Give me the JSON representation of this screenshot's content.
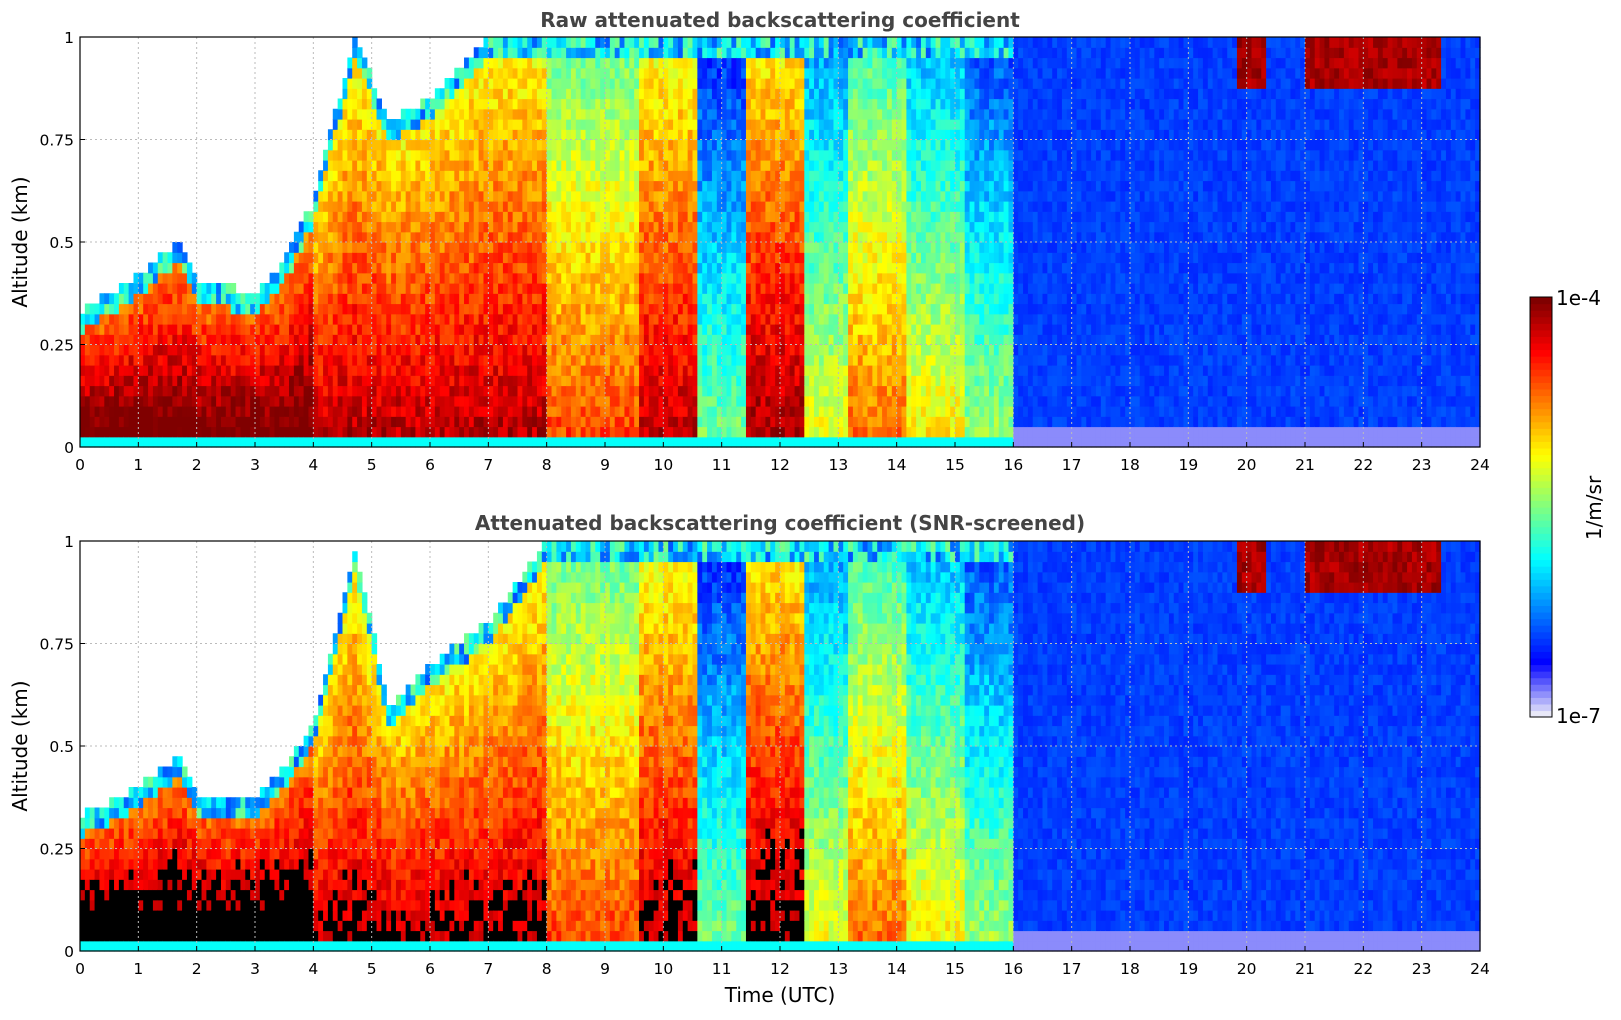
{
  "colors": {
    "jet_stops": [
      "#e8e8f8",
      "#0000ff",
      "#0080ff",
      "#00ffff",
      "#80ff80",
      "#ffff00",
      "#ff8000",
      "#ff0000",
      "#800000"
    ],
    "screened_high": "#000000",
    "grid": "#bbbbbb",
    "title": "#444444"
  },
  "chart_data": [
    {
      "type": "heatmap",
      "title": "Raw attenuated backscattering coefficient",
      "xlabel": "",
      "ylabel": "Altitude (km)",
      "xlim": [
        0,
        24
      ],
      "ylim": [
        0,
        1
      ],
      "xticks": [
        "0",
        "1",
        "2",
        "3",
        "4",
        "5",
        "6",
        "7",
        "8",
        "9",
        "10",
        "11",
        "12",
        "13",
        "14",
        "15",
        "16",
        "17",
        "18",
        "19",
        "20",
        "21",
        "22",
        "23",
        "24"
      ],
      "yticks": [
        "0",
        "0.25",
        "0.5",
        "0.75",
        "1"
      ],
      "ytick_values": [
        0,
        0.25,
        0.5,
        0.75,
        1
      ],
      "grid": true,
      "z_scale": "log",
      "z_range": [
        1e-07,
        0.0001
      ],
      "aerosol_layer_top_km": [
        [
          0,
          0.33
        ],
        [
          1,
          0.42
        ],
        [
          1.7,
          0.5
        ],
        [
          2,
          0.4
        ],
        [
          3,
          0.38
        ],
        [
          3.5,
          0.45
        ],
        [
          4,
          0.6
        ],
        [
          4.7,
          1.0
        ],
        [
          5.3,
          0.8
        ],
        [
          6,
          0.85
        ],
        [
          7,
          1.0
        ],
        [
          24,
          1.0
        ]
      ],
      "clear_sky_from_utc": 16,
      "upper_cloud_segments_utc": [
        [
          19.8,
          20.3
        ],
        [
          21.0,
          23.3
        ]
      ]
    },
    {
      "type": "heatmap",
      "title": "Attenuated backscattering coefficient (SNR-screened)",
      "xlabel": "Time (UTC)",
      "ylabel": "Altitude (km)",
      "xlim": [
        0,
        24
      ],
      "ylim": [
        0,
        1
      ],
      "xticks": [
        "0",
        "1",
        "2",
        "3",
        "4",
        "5",
        "6",
        "7",
        "8",
        "9",
        "10",
        "11",
        "12",
        "13",
        "14",
        "15",
        "16",
        "17",
        "18",
        "19",
        "20",
        "21",
        "22",
        "23",
        "24"
      ],
      "yticks": [
        "0",
        "0.25",
        "0.5",
        "0.75",
        "1"
      ],
      "ytick_values": [
        0,
        0.25,
        0.5,
        0.75,
        1
      ],
      "grid": true,
      "z_scale": "log",
      "z_range": [
        1e-07,
        0.0001
      ],
      "aerosol_layer_top_km": [
        [
          0,
          0.33
        ],
        [
          1,
          0.4
        ],
        [
          1.7,
          0.48
        ],
        [
          2,
          0.38
        ],
        [
          3,
          0.38
        ],
        [
          3.5,
          0.45
        ],
        [
          4,
          0.55
        ],
        [
          4.7,
          0.98
        ],
        [
          5.3,
          0.6
        ],
        [
          6,
          0.7
        ],
        [
          7,
          0.8
        ],
        [
          8,
          1.0
        ],
        [
          24,
          1.0
        ]
      ],
      "clear_sky_from_utc": 16,
      "upper_cloud_segments_utc": [
        [
          19.8,
          20.3
        ],
        [
          21.0,
          23.3
        ]
      ]
    }
  ],
  "colorbar": {
    "label": "1/m/sr",
    "max_label": "1e-4",
    "min_label": "1e-7"
  }
}
